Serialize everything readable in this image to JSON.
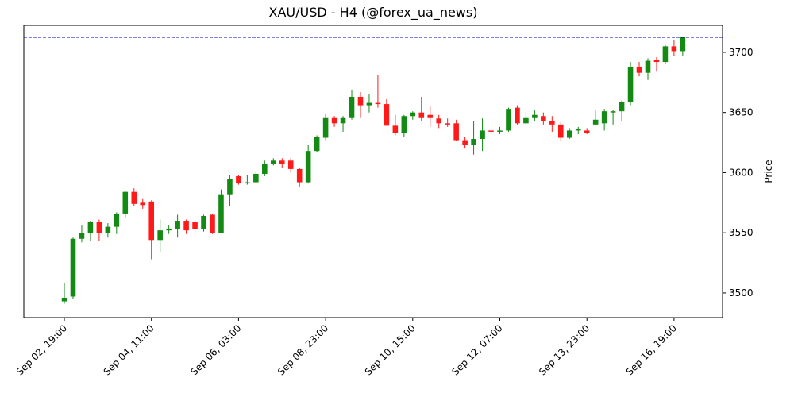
{
  "chart_data": {
    "type": "candlestick",
    "title": "XAU/USD - H4 (@forex_ua_news)",
    "ylabel": "Price",
    "categories": [
      "Sep 02, 19:00",
      null,
      null,
      null,
      null,
      null,
      null,
      null,
      null,
      null,
      "Sep 04, 11:00",
      null,
      null,
      null,
      null,
      null,
      null,
      null,
      null,
      null,
      "Sep 06, 03:00",
      null,
      null,
      null,
      null,
      null,
      null,
      null,
      null,
      null,
      "Sep 08, 23:00",
      null,
      null,
      null,
      null,
      null,
      null,
      null,
      null,
      null,
      "Sep 10, 15:00",
      null,
      null,
      null,
      null,
      null,
      null,
      null,
      null,
      null,
      "Sep 12, 07:00",
      null,
      null,
      null,
      null,
      null,
      null,
      null,
      null,
      null,
      "Sep 13, 23:00",
      null,
      null,
      null,
      null,
      null,
      null,
      null,
      null,
      null,
      "Sep 16, 19:00",
      null
    ],
    "open": [
      3493,
      3497,
      3545,
      3550,
      3559,
      3550,
      3555,
      3566,
      3584,
      3575,
      3576,
      3544,
      3552,
      3553,
      3560,
      3559,
      3553,
      3565,
      3550,
      3582,
      3597,
      3591,
      3592,
      3599,
      3607,
      3610,
      3610,
      3603,
      3592,
      3618,
      3629,
      3646,
      3641,
      3646,
      3663,
      3656,
      3658,
      3657,
      3639,
      3633,
      3647,
      3650,
      3648,
      3645,
      3641,
      3641,
      3627,
      3623,
      3628,
      3635,
      3634,
      3635,
      3654,
      3641,
      3646,
      3647,
      3643,
      3640,
      3629,
      3635,
      3635,
      3640,
      3641,
      3650,
      3651,
      3659,
      3688,
      3683,
      3694,
      3692,
      3705,
      3701
    ],
    "high": [
      3508,
      3546,
      3556,
      3560,
      3561,
      3558,
      3567,
      3585,
      3587,
      3578,
      3577,
      3561,
      3556,
      3565,
      3561,
      3561,
      3565,
      3566,
      3586,
      3598,
      3598,
      3598,
      3601,
      3610,
      3612,
      3612,
      3612,
      3604,
      3623,
      3631,
      3649,
      3647,
      3647,
      3669,
      3667,
      3665,
      3681,
      3661,
      3648,
      3648,
      3651,
      3663,
      3655,
      3648,
      3645,
      3644,
      3630,
      3643,
      3645,
      3637,
      3638,
      3654,
      3656,
      3650,
      3652,
      3650,
      3647,
      3642,
      3637,
      3638,
      3637,
      3652,
      3653,
      3652,
      3660,
      3692,
      3692,
      3695,
      3696,
      3706,
      3710,
      3713
    ],
    "low": [
      3491,
      3495,
      3542,
      3543,
      3543,
      3546,
      3549,
      3563,
      3572,
      3570,
      3528,
      3534,
      3549,
      3546,
      3549,
      3548,
      3551,
      3549,
      3550,
      3572,
      3590,
      3590,
      3591,
      3597,
      3606,
      3604,
      3600,
      3588,
      3591,
      3617,
      3627,
      3638,
      3634,
      3644,
      3646,
      3650,
      3654,
      3639,
      3631,
      3630,
      3644,
      3643,
      3638,
      3637,
      3638,
      3626,
      3620,
      3615,
      3618,
      3631,
      3632,
      3634,
      3640,
      3640,
      3643,
      3640,
      3634,
      3626,
      3628,
      3632,
      3632,
      3639,
      3635,
      3640,
      3643,
      3656,
      3680,
      3677,
      3684,
      3690,
      3697,
      3697
    ],
    "close": [
      3496,
      3545,
      3550,
      3559,
      3550,
      3555,
      3566,
      3584,
      3574,
      3573,
      3544,
      3552,
      3553,
      3560,
      3552,
      3553,
      3564,
      3550,
      3582,
      3595,
      3591,
      3592,
      3599,
      3607,
      3610,
      3607,
      3603,
      3592,
      3618,
      3630,
      3646,
      3641,
      3646,
      3663,
      3656,
      3658,
      3657,
      3639,
      3633,
      3647,
      3650,
      3646,
      3646,
      3641,
      3640,
      3627,
      3623,
      3628,
      3635,
      3634,
      3635,
      3653,
      3641,
      3646,
      3648,
      3643,
      3640,
      3629,
      3635,
      3636,
      3633,
      3644,
      3651,
      3651,
      3659,
      3688,
      3683,
      3693,
      3692,
      3705,
      3701,
      3712.5
    ],
    "up_color": "#138a13",
    "down_color": "#ff1a1a",
    "hline": 3712.5,
    "hline_color": "#0000cc",
    "xlim": [
      -4.65,
      75.57
    ],
    "ylim": [
      3479.5,
      3722.4
    ],
    "yticks": [
      3500,
      3550,
      3600,
      3650,
      3700
    ]
  }
}
